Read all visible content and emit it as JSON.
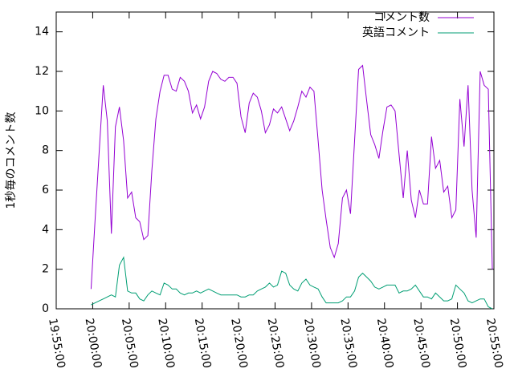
{
  "chart_data": {
    "type": "line",
    "ylabel": "1秒毎のコメント数",
    "legend": "top right",
    "xlim": [
      "19:55:00",
      "20:55:00"
    ],
    "xticks": [
      "19:55:00",
      "20:00:00",
      "20:05:00",
      "20:10:00",
      "20:15:00",
      "20:20:00",
      "20:25:00",
      "20:30:00",
      "20:35:00",
      "20:40:00",
      "20:45:00",
      "20:50:00",
      "20:55:00"
    ],
    "ylim": [
      0,
      15
    ],
    "yticks": [
      0,
      2,
      4,
      6,
      8,
      10,
      12,
      14
    ],
    "x": [
      "19:59:47",
      "20:00:20",
      "20:00:54",
      "20:01:27",
      "20:02:00",
      "20:02:34",
      "20:03:07",
      "20:03:40",
      "20:04:14",
      "20:04:47",
      "20:05:20",
      "20:05:54",
      "20:06:27",
      "20:07:00",
      "20:07:34",
      "20:08:07",
      "20:08:40",
      "20:09:14",
      "20:09:47",
      "20:10:20",
      "20:10:54",
      "20:11:27",
      "20:12:00",
      "20:12:34",
      "20:13:07",
      "20:13:40",
      "20:14:14",
      "20:14:47",
      "20:15:20",
      "20:15:54",
      "20:16:27",
      "20:17:00",
      "20:17:34",
      "20:18:07",
      "20:18:40",
      "20:19:14",
      "20:19:47",
      "20:20:20",
      "20:20:54",
      "20:21:27",
      "20:22:00",
      "20:22:34",
      "20:23:07",
      "20:23:40",
      "20:24:14",
      "20:24:47",
      "20:25:20",
      "20:25:54",
      "20:26:27",
      "20:27:00",
      "20:27:34",
      "20:28:07",
      "20:28:40",
      "20:29:14",
      "20:29:47",
      "20:30:20",
      "20:30:54",
      "20:31:27",
      "20:32:00",
      "20:32:34",
      "20:33:07",
      "20:33:40",
      "20:34:14",
      "20:34:47",
      "20:35:20",
      "20:35:54",
      "20:36:27",
      "20:37:00",
      "20:37:34",
      "20:38:07",
      "20:38:40",
      "20:39:14",
      "20:39:47",
      "20:40:20",
      "20:40:54",
      "20:41:27",
      "20:42:00",
      "20:42:34",
      "20:43:07",
      "20:43:40",
      "20:44:14",
      "20:44:47",
      "20:45:20",
      "20:45:54",
      "20:46:27",
      "20:47:00",
      "20:47:34",
      "20:48:07",
      "20:48:40",
      "20:49:14",
      "20:49:47",
      "20:50:20",
      "20:50:54",
      "20:51:27",
      "20:52:00",
      "20:52:34",
      "20:53:07",
      "20:53:40",
      "20:54:14",
      "20:54:47"
    ],
    "series": [
      {
        "name": "コメント数",
        "color": "#9400d3",
        "values": [
          1.0,
          4.5,
          8.0,
          11.3,
          9.5,
          3.8,
          9.2,
          10.2,
          8.5,
          5.6,
          5.9,
          4.6,
          4.4,
          3.5,
          3.7,
          7.0,
          9.6,
          11.0,
          11.8,
          11.8,
          11.1,
          11.0,
          11.7,
          11.5,
          11.0,
          9.9,
          10.3,
          9.6,
          10.2,
          11.5,
          12.0,
          11.9,
          11.6,
          11.5,
          11.7,
          11.7,
          11.4,
          9.7,
          8.9,
          10.4,
          10.9,
          10.7,
          10.0,
          8.9,
          9.3,
          10.1,
          9.9,
          10.2,
          9.6,
          9.0,
          9.5,
          10.2,
          11.0,
          10.7,
          11.2,
          11.0,
          8.5,
          6.0,
          4.5,
          3.1,
          2.6,
          3.3,
          5.6,
          6.0,
          4.8,
          8.5,
          12.1,
          12.3,
          10.5,
          8.8,
          8.3,
          7.6,
          9.0,
          10.2,
          10.3,
          10.0,
          7.8,
          5.6,
          8.0,
          5.5,
          4.6,
          6.0,
          5.3,
          5.3,
          8.7,
          7.1,
          7.5,
          5.9,
          6.2,
          4.6,
          5.0,
          10.6,
          8.2,
          11.3,
          6.0,
          3.6,
          12.0,
          11.3,
          11.1,
          2.0
        ]
      },
      {
        "name": "英語コメント",
        "color": "#009e73",
        "values": [
          0.2,
          0.3,
          0.4,
          0.5,
          0.6,
          0.7,
          0.6,
          2.2,
          2.6,
          0.9,
          0.8,
          0.8,
          0.5,
          0.4,
          0.7,
          0.9,
          0.8,
          0.7,
          1.3,
          1.2,
          1.0,
          1.0,
          0.8,
          0.7,
          0.8,
          0.8,
          0.9,
          0.8,
          0.9,
          1.0,
          0.9,
          0.8,
          0.7,
          0.7,
          0.7,
          0.7,
          0.7,
          0.6,
          0.6,
          0.7,
          0.7,
          0.9,
          1.0,
          1.1,
          1.3,
          1.1,
          1.2,
          1.9,
          1.8,
          1.2,
          1.0,
          0.9,
          1.3,
          1.5,
          1.2,
          1.1,
          1.0,
          0.6,
          0.3,
          0.3,
          0.3,
          0.3,
          0.4,
          0.6,
          0.6,
          0.9,
          1.6,
          1.8,
          1.6,
          1.4,
          1.1,
          1.0,
          1.1,
          1.2,
          1.2,
          1.2,
          0.8,
          0.9,
          0.9,
          1.0,
          1.2,
          0.9,
          0.6,
          0.6,
          0.5,
          0.8,
          0.6,
          0.4,
          0.4,
          0.5,
          1.2,
          1.0,
          0.8,
          0.4,
          0.3,
          0.4,
          0.5,
          0.5,
          0.1,
          0.0
        ]
      }
    ]
  }
}
